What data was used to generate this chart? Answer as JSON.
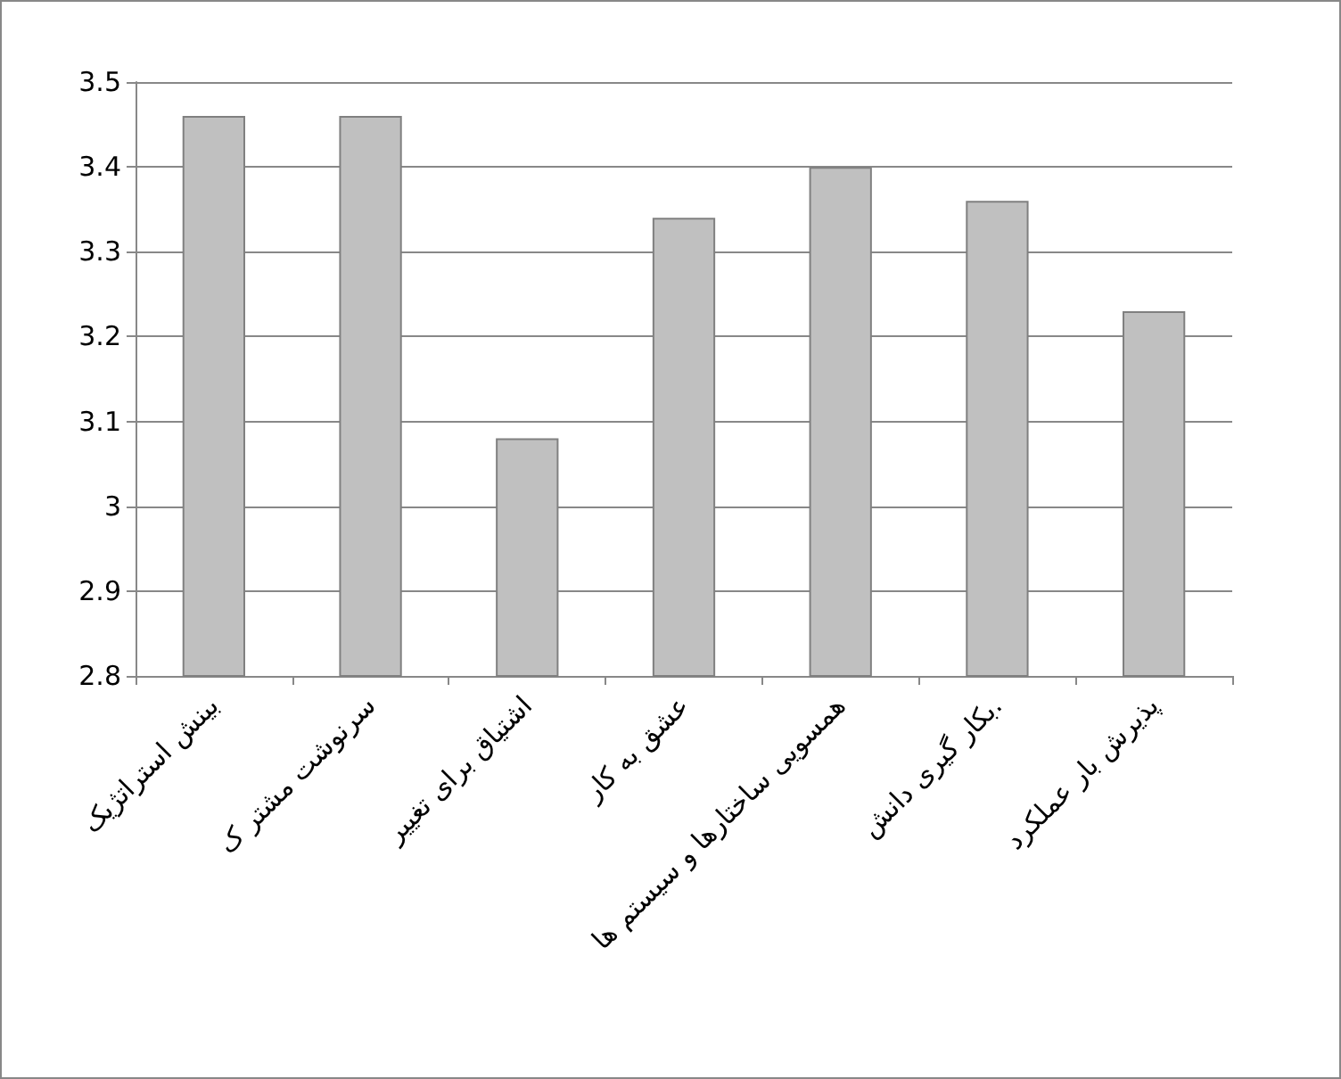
{
  "chart_data": {
    "type": "bar",
    "categories": [
      "بینش استراتژیک",
      "سرنوشت مشتر ک",
      "اشتیاق برای تغییر",
      "عشق به کار",
      "همسویی ساختارها و سیستم ها",
      "بکار گیری دانش.",
      "پذیرش بار عملکرد"
    ],
    "values": [
      3.46,
      3.46,
      3.08,
      3.34,
      3.4,
      3.36,
      3.23
    ],
    "color": "#c0c0c0",
    "ylim": [
      2.8,
      3.5
    ],
    "yticks": [
      2.8,
      2.9,
      3,
      3.1,
      3.2,
      3.3,
      3.4,
      3.5
    ],
    "grid": "y"
  }
}
